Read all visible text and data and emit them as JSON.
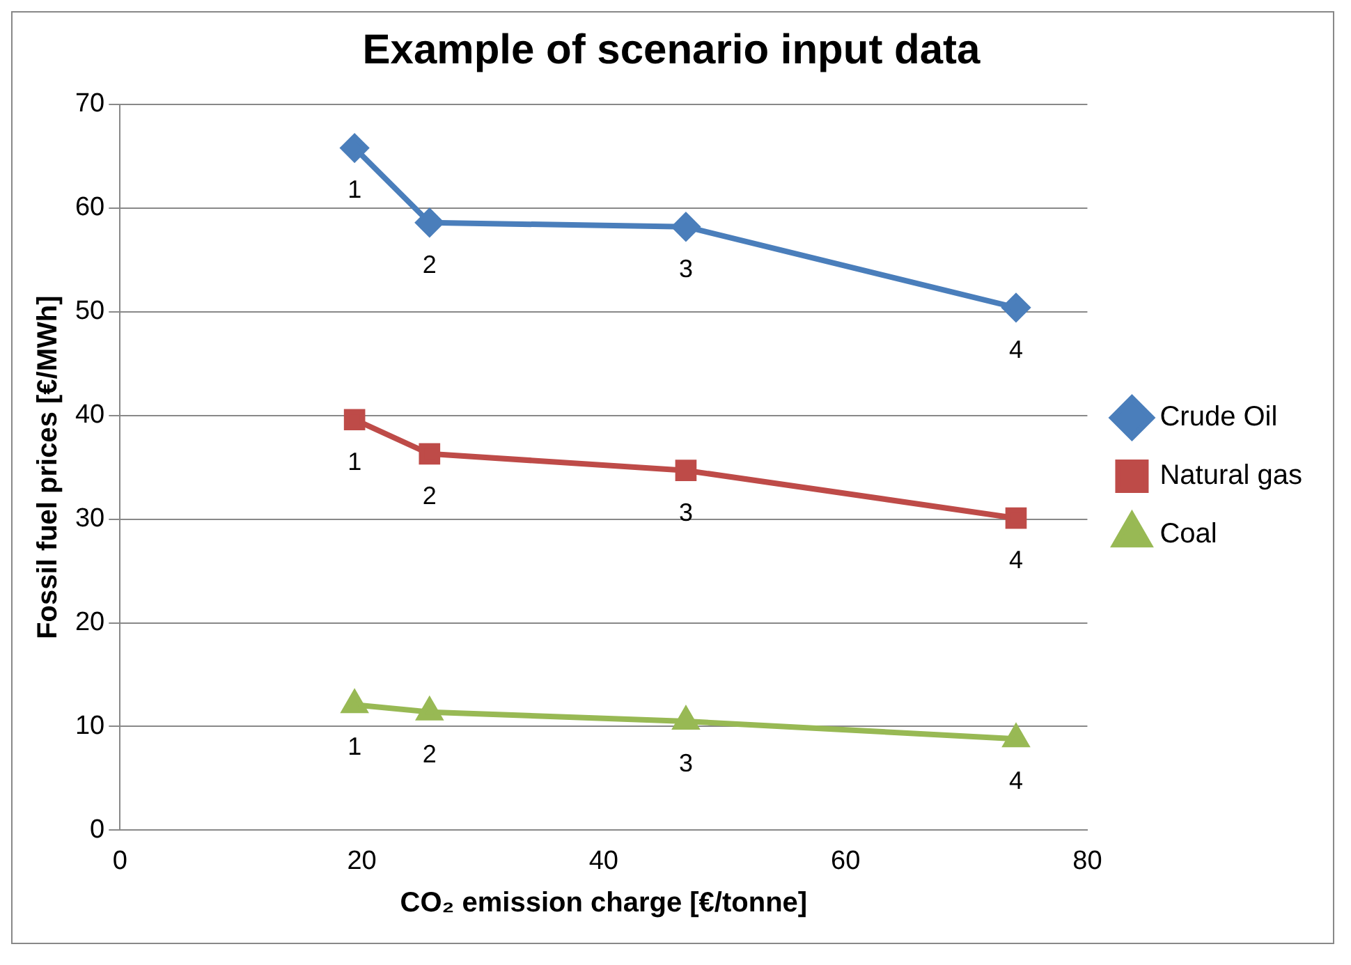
{
  "chart_data": {
    "type": "line",
    "title": "Example of scenario input data",
    "xlabel": "CO₂ emission charge [€/tonne]",
    "ylabel": "Fossil fuel prices [€/MWh]",
    "x": [
      19.4,
      25.6,
      46.8,
      74.1
    ],
    "series": [
      {
        "name": "Crude Oil",
        "color": "#4a7ebb",
        "marker": "diamond",
        "values": [
          65.8,
          58.6,
          58.2,
          50.4
        ]
      },
      {
        "name": "Natural gas",
        "color": "#be4b48",
        "marker": "square",
        "values": [
          39.6,
          36.3,
          34.7,
          30.1
        ]
      },
      {
        "name": "Coal",
        "color": "#98b954",
        "marker": "triangle",
        "values": [
          12.1,
          11.4,
          10.5,
          8.8
        ]
      }
    ],
    "xlim": [
      0,
      80
    ],
    "xticks": [
      0,
      20,
      40,
      60,
      80
    ],
    "ylim": [
      0,
      70
    ],
    "yticks": [
      0,
      10,
      20,
      30,
      40,
      50,
      60,
      70
    ],
    "grid": "y",
    "legend": "right",
    "annotations": [
      {
        "text": "1",
        "x": 19.4,
        "y": 65.8
      },
      {
        "text": "2",
        "x": 25.6,
        "y": 58.6
      },
      {
        "text": "3",
        "x": 46.8,
        "y": 58.2
      },
      {
        "text": "4",
        "x": 74.1,
        "y": 50.4
      },
      {
        "text": "1",
        "x": 19.4,
        "y": 39.6
      },
      {
        "text": "2",
        "x": 25.6,
        "y": 36.3
      },
      {
        "text": "3",
        "x": 46.8,
        "y": 34.7
      },
      {
        "text": "4",
        "x": 74.1,
        "y": 30.1
      },
      {
        "text": "1",
        "x": 19.4,
        "y": 12.1
      },
      {
        "text": "2",
        "x": 25.6,
        "y": 11.4
      },
      {
        "text": "3",
        "x": 46.8,
        "y": 10.5
      },
      {
        "text": "4",
        "x": 74.1,
        "y": 8.8
      }
    ]
  }
}
